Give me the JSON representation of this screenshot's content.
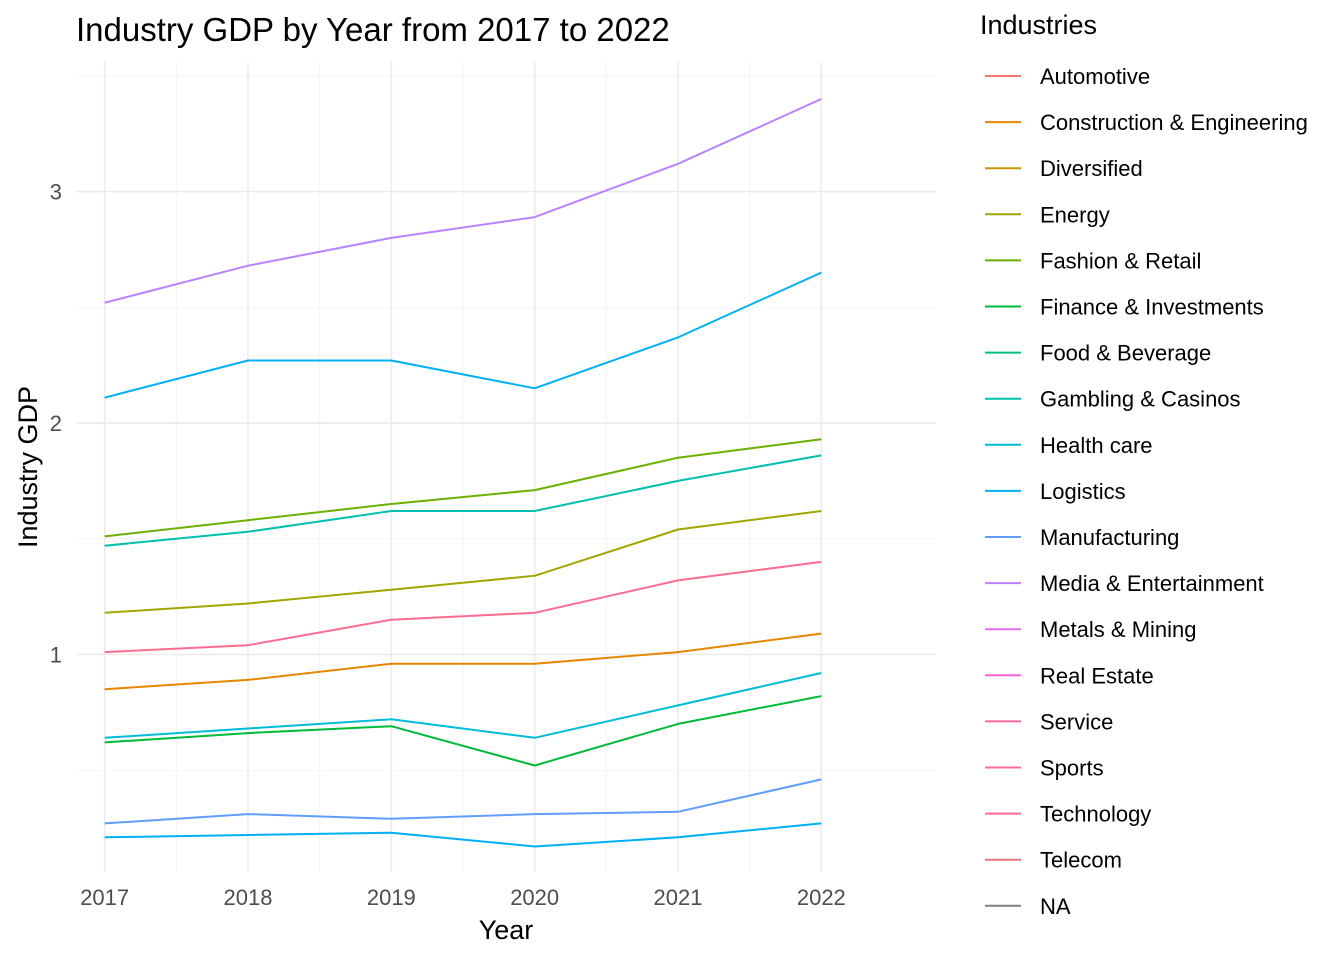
{
  "chart_data": {
    "type": "line",
    "title": "Industry GDP by Year from 2017 to 2022",
    "xlabel": "Year",
    "ylabel": "Industry GDP",
    "legend_title": "Industries",
    "legend_position": "right",
    "grid": true,
    "x": [
      2017,
      2018,
      2019,
      2020,
      2021,
      2022
    ],
    "x_tick_labels": [
      "2017",
      "2018",
      "2019",
      "2020",
      "2021",
      "2022"
    ],
    "y_ticks": [
      1,
      2,
      3
    ],
    "y_tick_labels": [
      "1",
      "2",
      "3"
    ],
    "xlim": [
      2016.8,
      2022.8
    ],
    "ylim": [
      0.06,
      3.56
    ],
    "legend_entries": [
      {
        "name": "Automotive",
        "color": "#F8766D"
      },
      {
        "name": "Construction & Engineering",
        "color": "#E58700"
      },
      {
        "name": "Diversified",
        "color": "#C99800"
      },
      {
        "name": "Energy",
        "color": "#A3A500"
      },
      {
        "name": "Fashion & Retail",
        "color": "#6BB100"
      },
      {
        "name": "Finance & Investments",
        "color": "#00BA38"
      },
      {
        "name": "Food & Beverage",
        "color": "#00BF7D"
      },
      {
        "name": "Gambling & Casinos",
        "color": "#00C0AF"
      },
      {
        "name": "Health care",
        "color": "#00BCD8"
      },
      {
        "name": "Logistics",
        "color": "#00B0F6"
      },
      {
        "name": "Manufacturing",
        "color": "#619CFF"
      },
      {
        "name": "Media & Entertainment",
        "color": "#B983FF"
      },
      {
        "name": "Metals & Mining",
        "color": "#E76BF3"
      },
      {
        "name": "Real Estate",
        "color": "#FD61D1"
      },
      {
        "name": "Service",
        "color": "#FF67A4"
      },
      {
        "name": "Sports",
        "color": "#FF6C91"
      },
      {
        "name": "Technology",
        "color": "#FF6A98"
      },
      {
        "name": "Telecom",
        "color": "#E8757E"
      },
      {
        "name": "NA",
        "color": "#808080"
      }
    ],
    "series": [
      {
        "color": "#B983FF",
        "values": [
          2.52,
          2.68,
          2.8,
          2.89,
          3.12,
          3.4
        ]
      },
      {
        "color": "#00B0F6",
        "values": [
          2.11,
          2.27,
          2.27,
          2.15,
          2.37,
          2.65
        ]
      },
      {
        "color": "#6BB100",
        "values": [
          1.51,
          1.58,
          1.65,
          1.71,
          1.85,
          1.93
        ]
      },
      {
        "color": "#00C0AF",
        "values": [
          1.47,
          1.53,
          1.62,
          1.62,
          1.75,
          1.86
        ]
      },
      {
        "color": "#A3A500",
        "values": [
          1.18,
          1.22,
          1.28,
          1.34,
          1.54,
          1.62
        ]
      },
      {
        "color": "#FF6C91",
        "values": [
          1.01,
          1.04,
          1.15,
          1.18,
          1.32,
          1.4
        ]
      },
      {
        "color": "#E58700",
        "values": [
          0.85,
          0.89,
          0.96,
          0.96,
          1.01,
          1.09
        ]
      },
      {
        "color": "#00BCD8",
        "values": [
          0.64,
          0.68,
          0.72,
          0.64,
          0.78,
          0.92
        ]
      },
      {
        "color": "#00BA38",
        "values": [
          0.62,
          0.66,
          0.69,
          0.52,
          0.7,
          0.82
        ]
      },
      {
        "color": "#619CFF",
        "values": [
          0.27,
          0.31,
          0.29,
          0.31,
          0.32,
          0.46
        ]
      },
      {
        "color": "#00B0F6",
        "values": [
          0.21,
          0.22,
          0.23,
          0.17,
          0.21,
          0.27
        ]
      }
    ]
  }
}
